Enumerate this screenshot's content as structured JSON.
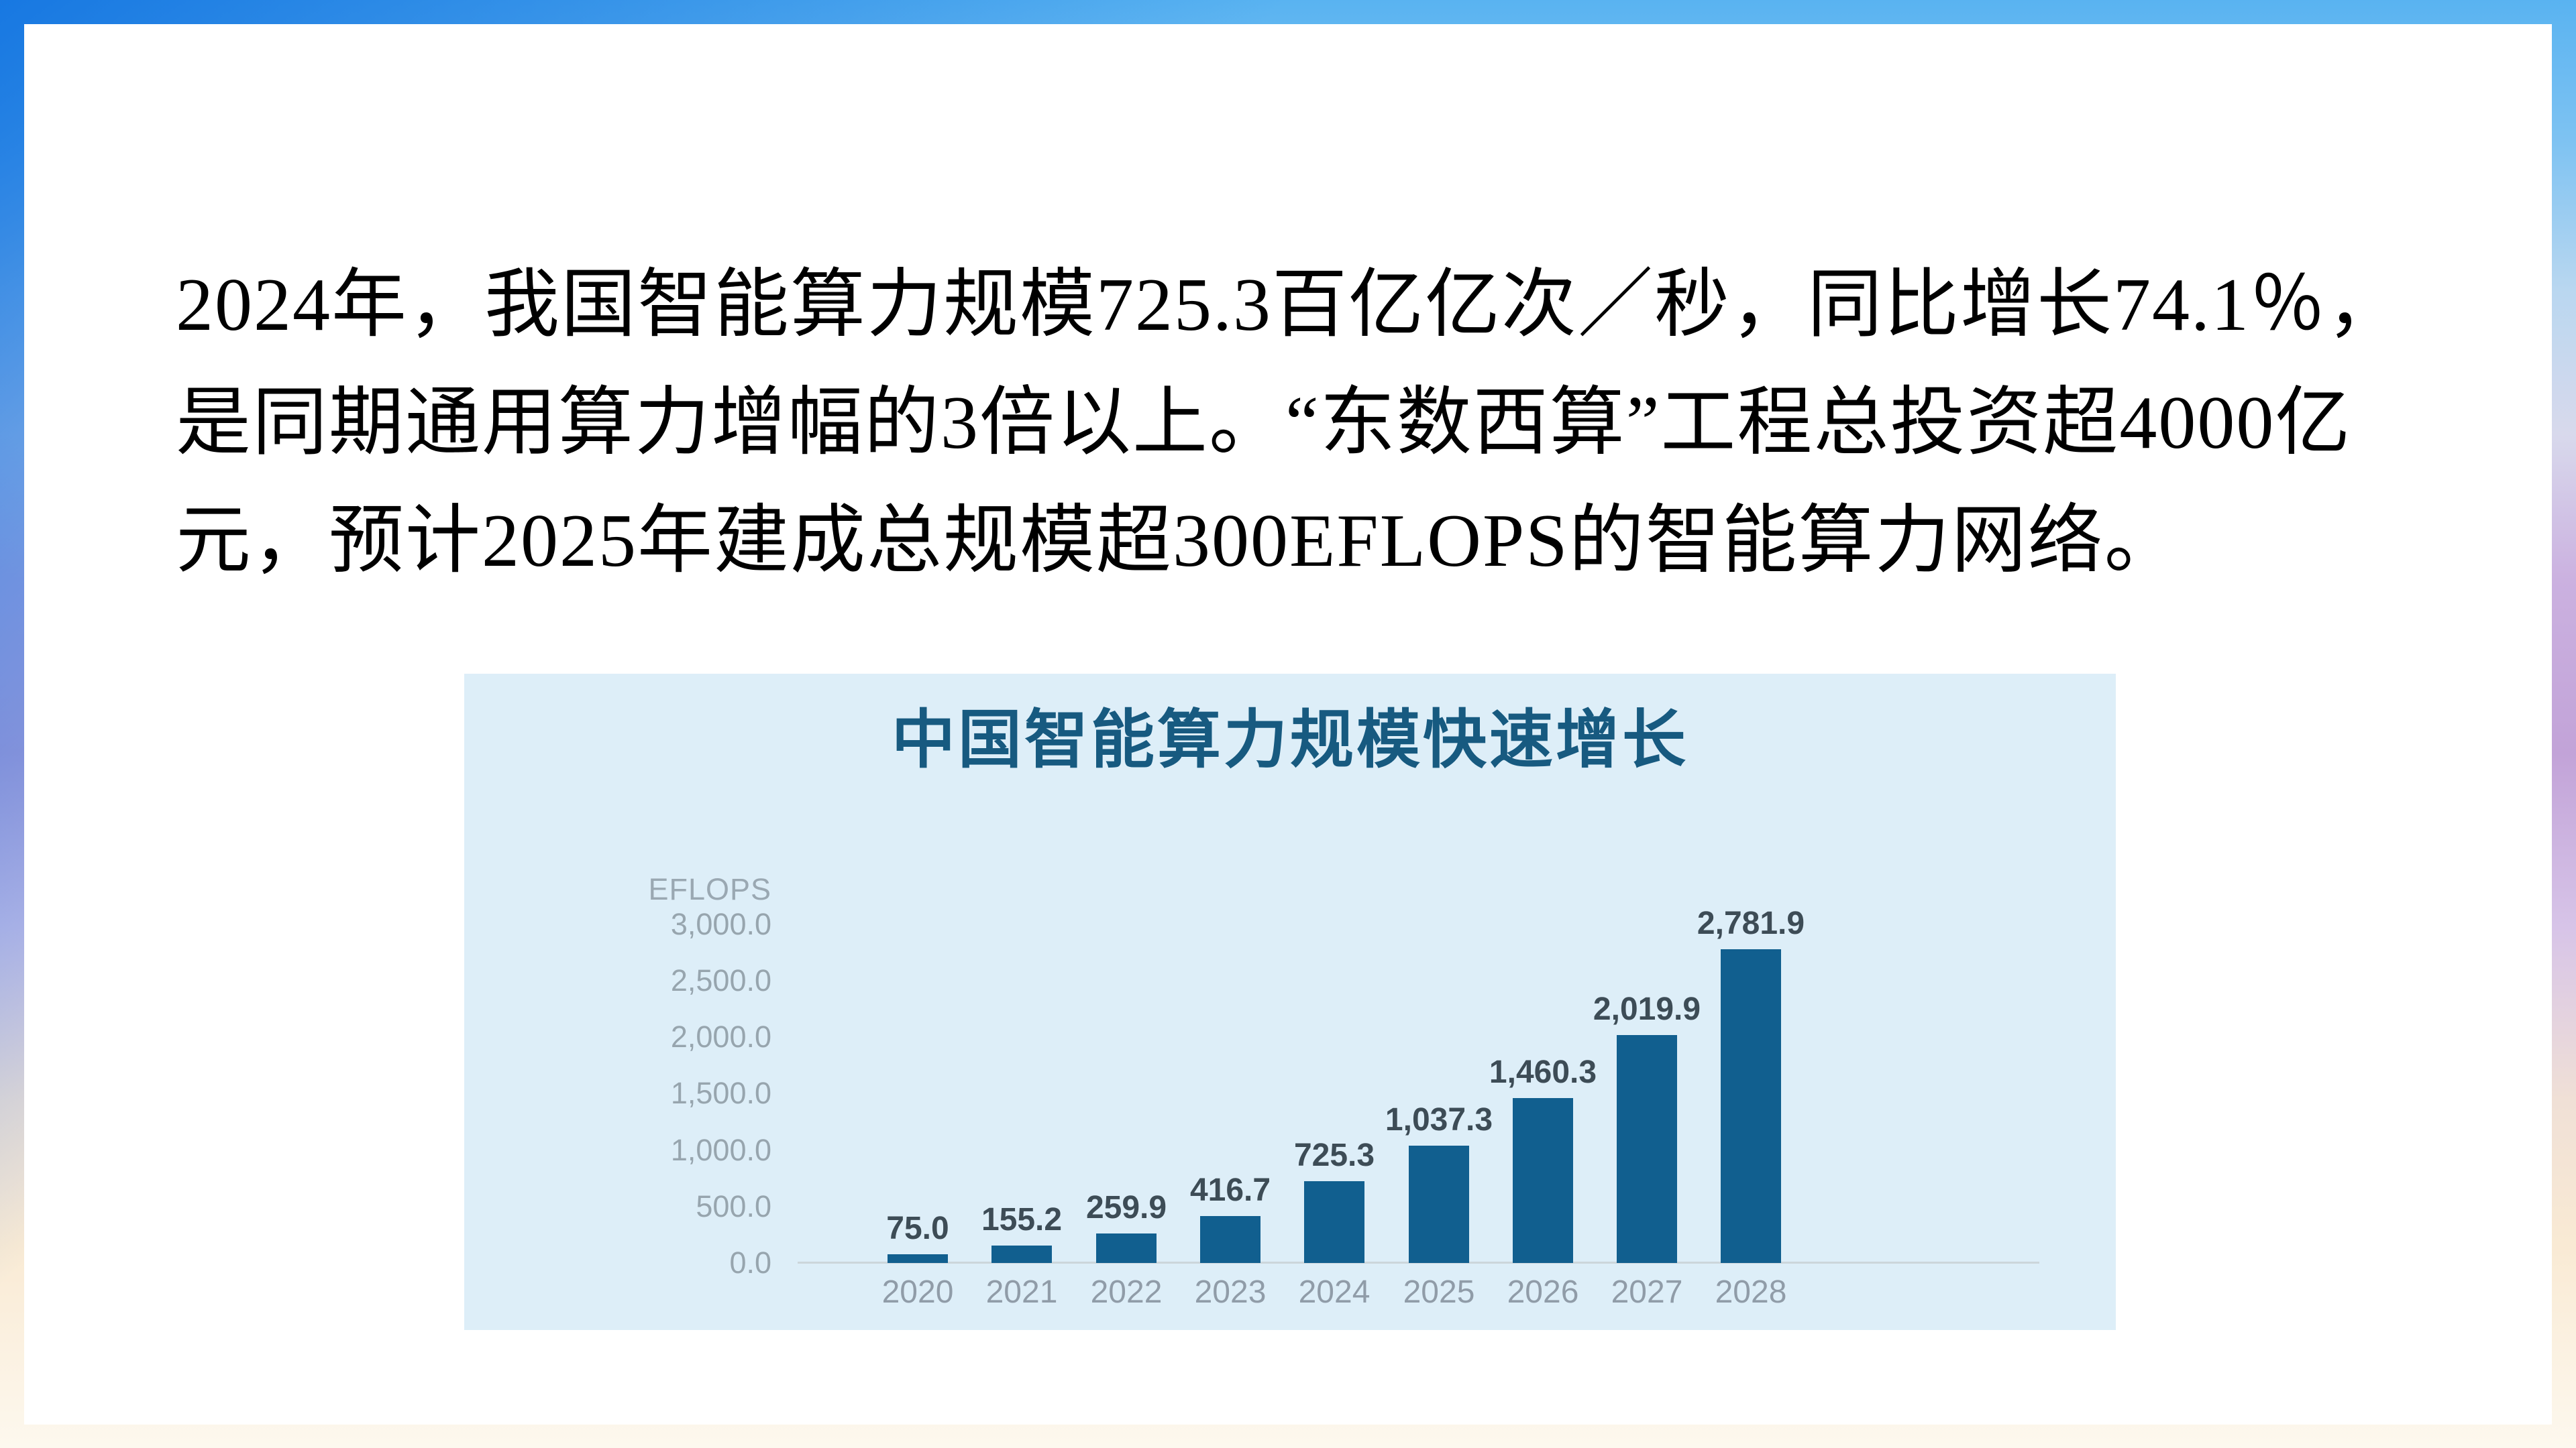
{
  "slide": {
    "paragraph_lines": [
      "2024年，我国智能算力规模725.3百亿亿次／秒，同比增长74.1％，",
      "是同期通用算力增幅的3倍以上。“东数西算”工程总投资超4000亿",
      "元，预计2025年建成总规模超300EFLOPS的智能算力网络。"
    ]
  },
  "chart_data": {
    "type": "bar",
    "title": "中国智能算力规模快速增长",
    "unit_label": "EFLOPS",
    "xlabel": "",
    "ylabel": "EFLOPS",
    "categories": [
      "2020",
      "2021",
      "2022",
      "2023",
      "2024",
      "2025",
      "2026",
      "2027",
      "2028"
    ],
    "values": [
      75.0,
      155.2,
      259.9,
      416.7,
      725.3,
      1037.3,
      1460.3,
      2019.9,
      2781.9
    ],
    "value_labels": [
      "75.0",
      "155.2",
      "259.9",
      "416.7",
      "725.3",
      "1,037.3",
      "1,460.3",
      "2,019.9",
      "2,781.9"
    ],
    "ylim": [
      0,
      3000
    ],
    "ytick_values": [
      3000,
      2500,
      2000,
      1500,
      1000,
      500,
      0
    ],
    "ytick_labels": [
      "3,000.0",
      "2,500.0",
      "2,000.0",
      "1,500.0",
      "1,000.0",
      "500.0",
      "0.0"
    ],
    "grid": "off",
    "legend": "none",
    "colors": {
      "bar": "#115f8f",
      "title": "#175a80",
      "tick_label": "#97a5ae",
      "value_label": "#3d4c56",
      "panel_background": "#ddeef8",
      "axis_line": "#ccd6db",
      "unit_label": "#9aa8b2"
    }
  }
}
